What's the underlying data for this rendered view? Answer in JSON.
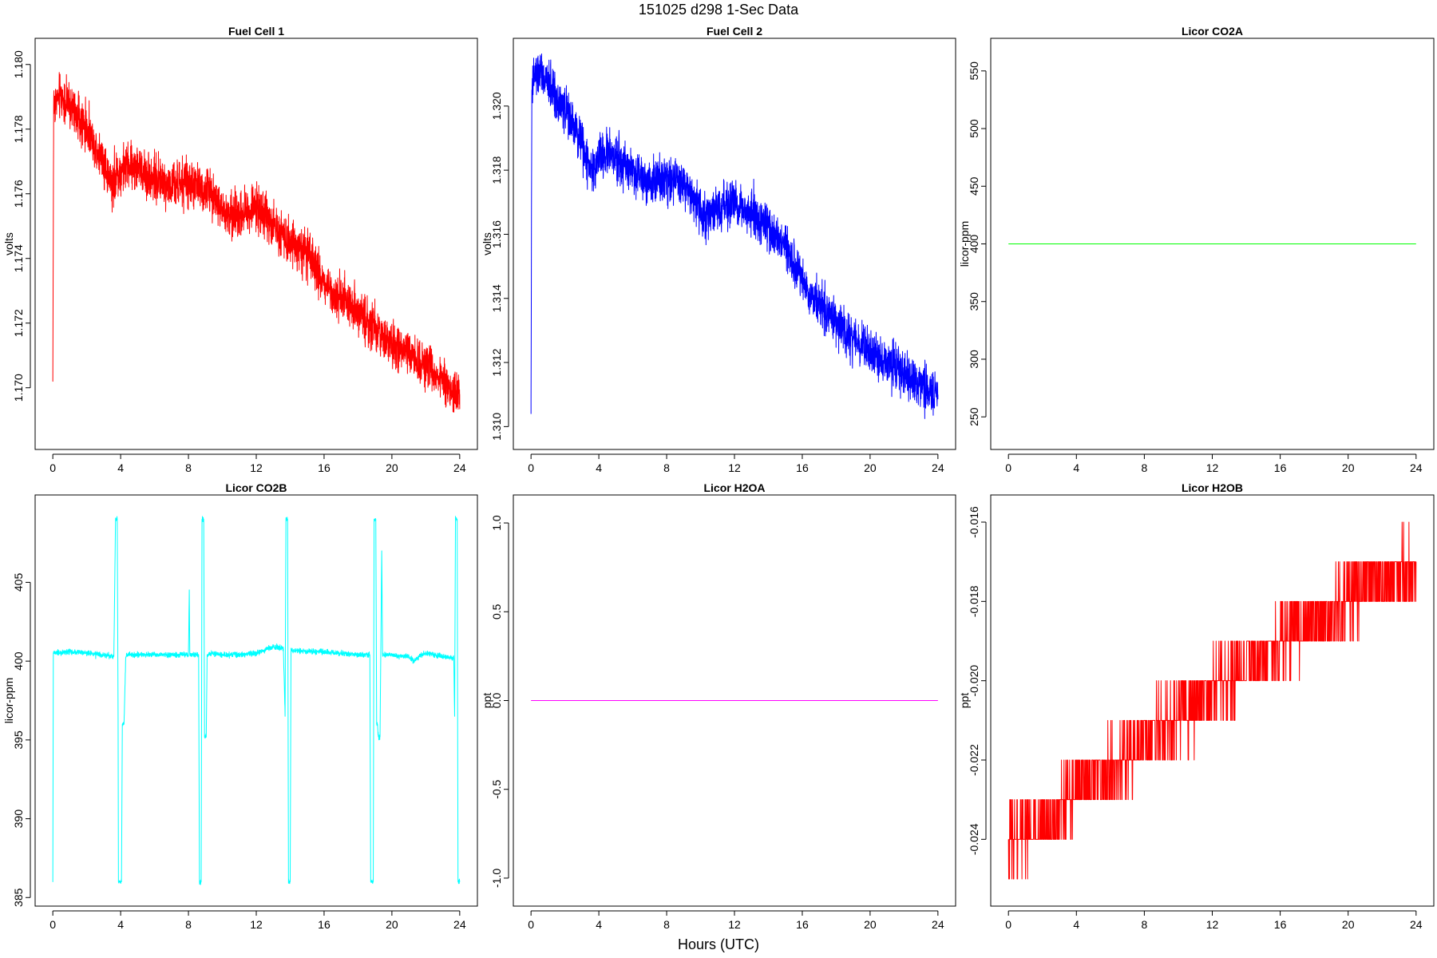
{
  "figure": {
    "title": "151025   d298   1-Sec Data",
    "xlabel": "Hours (UTC)"
  },
  "chart_data": [
    {
      "type": "line",
      "title": "Fuel Cell 1",
      "ylabel": "volts",
      "color": "#ff0000",
      "xlim": [
        0,
        24
      ],
      "ylim": [
        1.1686,
        1.1803
      ],
      "xticks": [
        0,
        4,
        8,
        12,
        16,
        20,
        24
      ],
      "xtick_labels": [
        "0",
        "4",
        "8",
        "12",
        "16",
        "20",
        "24"
      ],
      "yticks": [
        1.17,
        1.172,
        1.174,
        1.176,
        1.178,
        1.18
      ],
      "ytick_labels": [
        "1.170",
        "1.172",
        "1.174",
        "1.176",
        "1.178",
        "1.180"
      ],
      "noise": 0.00035,
      "x": [
        0,
        0.05,
        0.15,
        0.5,
        1.0,
        1.5,
        2.0,
        2.5,
        3.0,
        3.3,
        3.6,
        3.8,
        4.0,
        4.5,
        5.0,
        5.5,
        6.0,
        7.0,
        8.0,
        8.5,
        9.0,
        9.5,
        10.0,
        10.5,
        11.0,
        11.5,
        12.0,
        12.5,
        13.0,
        14.0,
        15.0,
        15.5,
        16.0,
        17.0,
        18.0,
        19.0,
        20.0,
        21.0,
        22.0,
        22.5,
        23.0,
        23.5,
        24.0
      ],
      "y": [
        1.1702,
        1.1787,
        1.1789,
        1.179,
        1.1787,
        1.1784,
        1.178,
        1.1775,
        1.177,
        1.1765,
        1.1763,
        1.1766,
        1.1767,
        1.1769,
        1.1768,
        1.1766,
        1.1765,
        1.1762,
        1.1763,
        1.1762,
        1.1761,
        1.176,
        1.1754,
        1.1753,
        1.1754,
        1.1755,
        1.1756,
        1.1754,
        1.175,
        1.1746,
        1.1741,
        1.1737,
        1.1732,
        1.1728,
        1.1724,
        1.1718,
        1.1713,
        1.171,
        1.1707,
        1.1705,
        1.1702,
        1.1699,
        1.1698
      ]
    },
    {
      "type": "line",
      "title": "Fuel Cell 2",
      "ylabel": "volts",
      "color": "#0000ff",
      "xlim": [
        0,
        24
      ],
      "ylim": [
        1.3098,
        1.3216
      ],
      "xticks": [
        0,
        4,
        8,
        12,
        16,
        20,
        24
      ],
      "xtick_labels": [
        "0",
        "4",
        "8",
        "12",
        "16",
        "20",
        "24"
      ],
      "yticks": [
        1.31,
        1.312,
        1.314,
        1.316,
        1.318,
        1.32
      ],
      "ytick_labels": [
        "1.310",
        "1.312",
        "1.314",
        "1.316",
        "1.318",
        "1.320"
      ],
      "noise": 0.00035,
      "x": [
        0,
        0.05,
        0.2,
        0.5,
        1.0,
        1.5,
        2.0,
        2.5,
        3.0,
        3.3,
        3.6,
        4.0,
        4.5,
        5.0,
        5.5,
        6.0,
        7.0,
        8.0,
        8.5,
        9.0,
        9.5,
        10.0,
        10.5,
        11.0,
        11.5,
        12.0,
        12.5,
        13.0,
        14.0,
        15.0,
        15.5,
        16.0,
        17.0,
        18.0,
        19.0,
        20.0,
        21.0,
        22.0,
        23.0,
        23.5,
        24.0
      ],
      "y": [
        1.3108,
        1.3205,
        1.3209,
        1.321,
        1.3207,
        1.3203,
        1.3199,
        1.3194,
        1.3188,
        1.3183,
        1.318,
        1.3184,
        1.3185,
        1.3184,
        1.3182,
        1.318,
        1.3177,
        1.3178,
        1.3177,
        1.3176,
        1.3172,
        1.3167,
        1.3166,
        1.3167,
        1.3169,
        1.3169,
        1.3168,
        1.3166,
        1.3162,
        1.3156,
        1.315,
        1.3145,
        1.3138,
        1.3132,
        1.3127,
        1.3123,
        1.312,
        1.3117,
        1.3113,
        1.3111,
        1.311
      ]
    },
    {
      "type": "line",
      "title": "Licor CO2A",
      "ylabel": "licor-ppm",
      "color": "#00ff00",
      "xlim": [
        0,
        24
      ],
      "ylim": [
        236,
        564
      ],
      "xticks": [
        0,
        4,
        8,
        12,
        16,
        20,
        24
      ],
      "xtick_labels": [
        "0",
        "4",
        "8",
        "12",
        "16",
        "20",
        "24"
      ],
      "yticks": [
        250,
        300,
        350,
        400,
        450,
        500,
        550
      ],
      "ytick_labels": [
        "250",
        "300",
        "350",
        "400",
        "450",
        "500",
        "550"
      ],
      "noise": 0,
      "x": [
        0,
        24
      ],
      "y": [
        400,
        400
      ]
    },
    {
      "type": "line",
      "title": "Licor CO2B",
      "ylabel": "licor-ppm",
      "color": "#00ffff",
      "xlim": [
        0,
        24
      ],
      "ylim": [
        385.5,
        409.5
      ],
      "xticks": [
        0,
        4,
        8,
        12,
        16,
        20,
        24
      ],
      "xtick_labels": [
        "0",
        "4",
        "8",
        "12",
        "16",
        "20",
        "24"
      ],
      "yticks": [
        385,
        390,
        395,
        400,
        405
      ],
      "ytick_labels": [
        "385",
        "390",
        "395",
        "400",
        "405"
      ],
      "noise": 0.08,
      "x": [
        0,
        0.03,
        0.06,
        0.1,
        1.0,
        2.0,
        3.0,
        3.6,
        3.7,
        3.72,
        3.8,
        3.85,
        3.87,
        3.9,
        4.0,
        4.05,
        4.1,
        4.15,
        4.2,
        4.3,
        4.35,
        5.0,
        6.0,
        7.0,
        8.0,
        8.05,
        8.08,
        8.1,
        8.2,
        8.6,
        8.65,
        8.7,
        8.75,
        8.8,
        8.85,
        8.9,
        8.95,
        9.0,
        9.05,
        9.1,
        9.2,
        9.25,
        10.0,
        11.0,
        12.0,
        13.0,
        13.6,
        13.7,
        13.75,
        13.8,
        13.85,
        13.9,
        13.95,
        14.0,
        14.05,
        14.1,
        15.0,
        16.0,
        17.0,
        18.0,
        18.7,
        18.75,
        18.8,
        18.9,
        18.95,
        19.0,
        19.05,
        19.1,
        19.15,
        19.2,
        19.25,
        19.3,
        19.4,
        19.45,
        20.0,
        20.5,
        21.0,
        21.3,
        21.7,
        22.0,
        23.0,
        23.6,
        23.65,
        23.7,
        23.75,
        23.8,
        23.85,
        23.9,
        23.95,
        24.0
      ],
      "y": [
        386,
        400.5,
        400.6,
        400.5,
        400.6,
        400.5,
        400.4,
        400.3,
        409,
        409,
        409,
        396.5,
        386,
        386,
        386,
        386,
        396,
        396,
        396,
        400.2,
        400.4,
        400.4,
        400.4,
        400.4,
        400.4,
        404.5,
        400.4,
        400.4,
        400.4,
        400.4,
        386,
        386,
        386,
        409,
        409,
        409,
        395.2,
        395.2,
        395.2,
        400.4,
        400.4,
        400.5,
        400.4,
        400.4,
        400.5,
        400.9,
        400.8,
        396.5,
        409,
        409,
        409,
        386,
        386,
        386,
        400.8,
        400.7,
        400.6,
        400.6,
        400.5,
        400.4,
        400.4,
        386,
        386,
        386,
        409,
        409,
        409,
        396,
        396,
        395.2,
        395.2,
        395.2,
        407,
        400.4,
        400.4,
        400.3,
        400.3,
        400,
        400.4,
        400.5,
        400.3,
        400.2,
        400.2,
        396.5,
        409,
        409,
        409,
        386,
        386,
        386
      ]
    },
    {
      "type": "line",
      "title": "Licor H2OA",
      "ylabel": "ppt",
      "color": "#ff00ff",
      "xlim": [
        0,
        24
      ],
      "ylim": [
        -1.065,
        1.065
      ],
      "xticks": [
        0,
        4,
        8,
        12,
        16,
        20,
        24
      ],
      "xtick_labels": [
        "0",
        "4",
        "8",
        "12",
        "16",
        "20",
        "24"
      ],
      "yticks": [
        -1.0,
        -0.5,
        0.0,
        0.5,
        1.0
      ],
      "ytick_labels": [
        "-1.0",
        "-0.5",
        "0.0",
        "0.5",
        "1.0"
      ],
      "noise": 0,
      "x": [
        0,
        24
      ],
      "y": [
        0,
        0
      ]
    },
    {
      "type": "line",
      "title": "Licor H2OB",
      "ylabel": "ppt",
      "color": "#ff0000",
      "xlim": [
        0,
        24
      ],
      "ylim": [
        -0.02527,
        -0.01573
      ],
      "xticks": [
        0,
        4,
        8,
        12,
        16,
        20,
        24
      ],
      "xtick_labels": [
        "0",
        "4",
        "8",
        "12",
        "16",
        "20",
        "24"
      ],
      "yticks": [
        -0.024,
        -0.022,
        -0.02,
        -0.018,
        -0.016
      ],
      "ytick_labels": [
        "-0.024",
        "-0.022",
        "-0.020",
        "-0.018",
        "-0.016"
      ],
      "noise": 0,
      "quantized_step": 0.001,
      "x": [
        0,
        0.1,
        1.0,
        2.0,
        3.0,
        3.5,
        4.0,
        5.0,
        6.0,
        7.0,
        7.5,
        8.0,
        9.0,
        10.0,
        11.0,
        11.5,
        12.0,
        13.0,
        14.0,
        15.0,
        15.5,
        16.0,
        17.0,
        18.0,
        19.0,
        19.5,
        20.0,
        21.0,
        22.0,
        23.0,
        24.0
      ],
      "y": [
        -0.0245,
        -0.024,
        -0.0238,
        -0.0236,
        -0.0233,
        -0.023,
        -0.0226,
        -0.0224,
        -0.0222,
        -0.022,
        -0.0218,
        -0.0214,
        -0.0212,
        -0.0209,
        -0.0207,
        -0.0205,
        -0.0202,
        -0.02,
        -0.0197,
        -0.0195,
        -0.0193,
        -0.019,
        -0.0188,
        -0.0185,
        -0.0183,
        -0.0181,
        -0.0179,
        -0.0177,
        -0.0175,
        -0.0173,
        -0.0172
      ]
    }
  ]
}
